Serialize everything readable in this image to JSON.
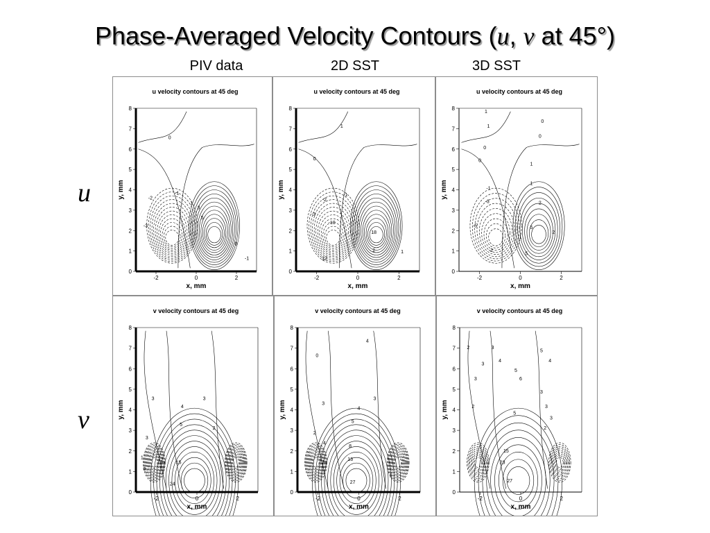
{
  "slide": {
    "title_text": "Phase-Averaged Velocity Contours (",
    "title_u": "u",
    "title_sep": ", ",
    "title_v": "v",
    "title_tail": " at 45°)"
  },
  "columns": [
    "PIV data",
    "2D SST",
    "3D SST"
  ],
  "rows": [
    "u",
    "v"
  ],
  "axes": {
    "xlabel": "x, mm",
    "ylabel": "y, mm",
    "xticks": [
      "-2",
      "0",
      "2"
    ],
    "yticks": [
      "0",
      "1",
      "2",
      "3",
      "4",
      "5",
      "6",
      "7",
      "8"
    ]
  },
  "panels": [
    {
      "row": "u",
      "col": "PIV data",
      "title": "u velocity contours at 45 deg",
      "labels": [
        "0",
        "-2",
        "-1",
        "-3",
        "1",
        "3",
        "5",
        "0",
        "-1"
      ]
    },
    {
      "row": "u",
      "col": "2D SST",
      "title": "u velocity contours at 45 deg",
      "labels": [
        "1",
        "0",
        "-1",
        "-2",
        "-3",
        "-10",
        "18",
        "12",
        "2",
        "1"
      ]
    },
    {
      "row": "u",
      "col": "3D SST",
      "title": "u velocity contours at 45 deg",
      "labels": [
        "1",
        "1",
        "0",
        "0",
        "0",
        "0",
        "1",
        "-1",
        "-3",
        "-5",
        "1",
        "2",
        "5",
        "2",
        "1",
        "5",
        "-2"
      ]
    },
    {
      "row": "v",
      "col": "PIV data",
      "title": "v velocity contours at 45 deg",
      "labels": [
        "3",
        "3",
        "4",
        "5",
        "2",
        "3",
        "1",
        "0",
        "15",
        "24"
      ]
    },
    {
      "row": "v",
      "col": "2D SST",
      "title": "v velocity contours at 45 deg",
      "labels": [
        "4",
        "0",
        "3",
        "3",
        "4",
        "5",
        "2",
        "4",
        "8",
        "13",
        "27",
        "1"
      ]
    },
    {
      "row": "v",
      "col": "3D SST",
      "title": "v velocity contours at 45 deg",
      "labels": [
        "2",
        "3",
        "3",
        "3",
        "4",
        "5",
        "6",
        "5",
        "4",
        "2",
        "3",
        "3",
        "3",
        "5",
        "2",
        "15",
        "23",
        "27"
      ]
    }
  ]
}
